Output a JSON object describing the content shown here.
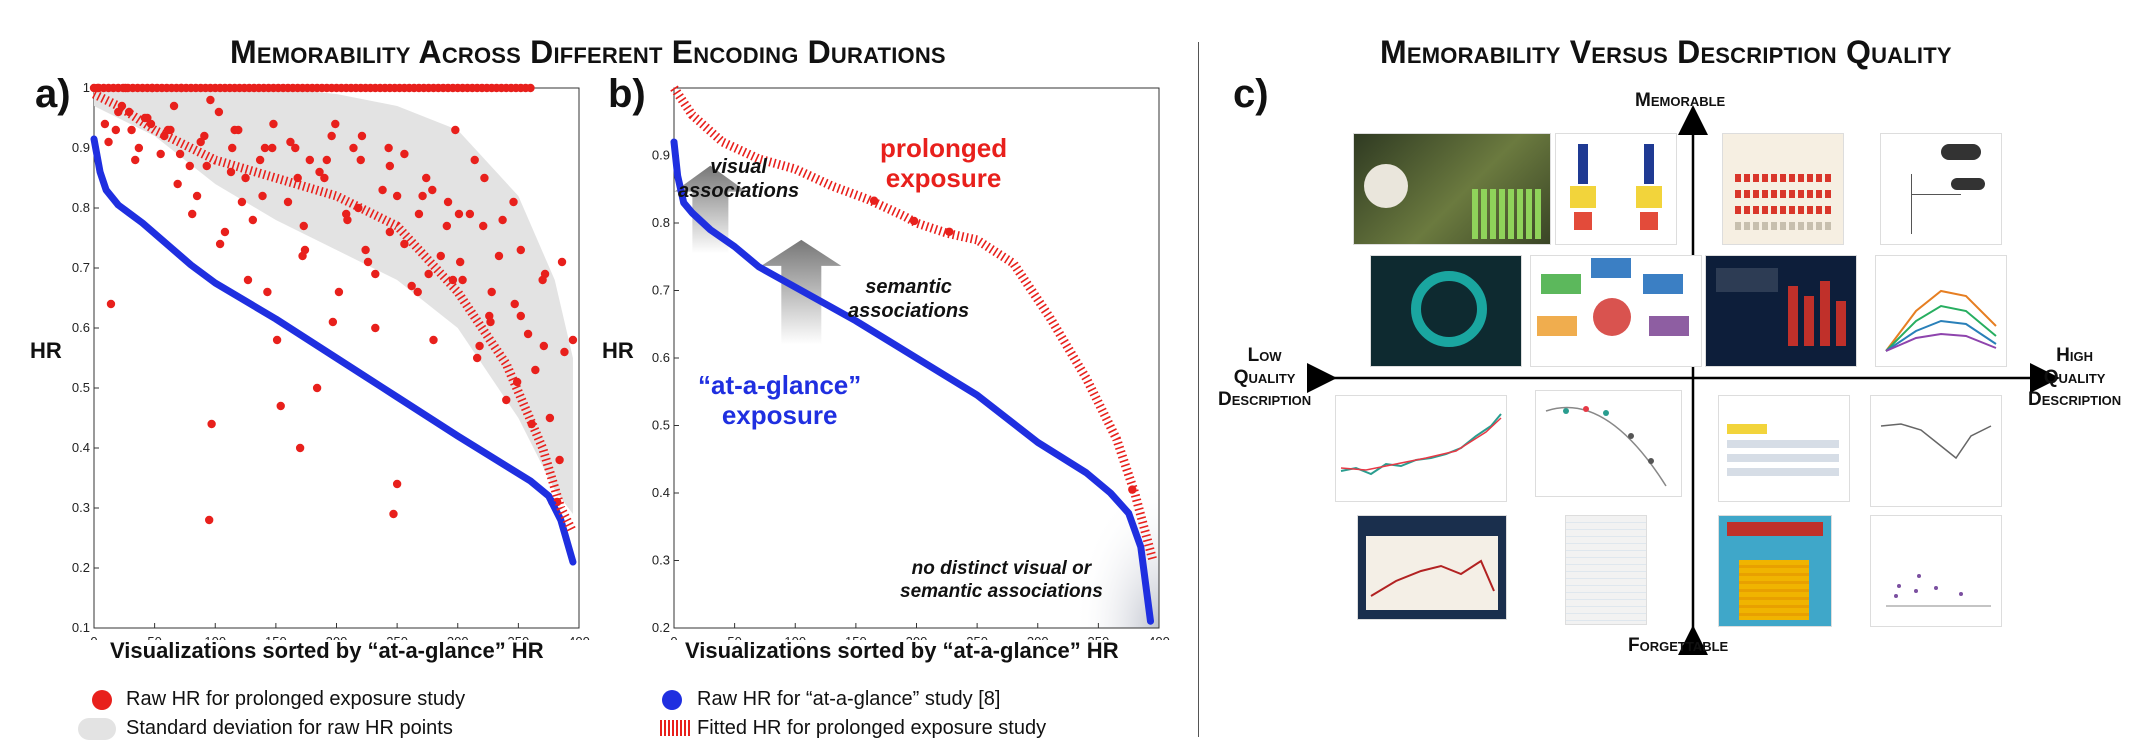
{
  "titles": {
    "left": "Memorability Across Different Encoding Durations",
    "right": "Memorability Versus Description Quality"
  },
  "panels": {
    "a": "a)",
    "b": "b)",
    "c": "c)"
  },
  "colors": {
    "red": "#e8201c",
    "blue": "#1f2fe0",
    "gray_band": "#e3e3e3",
    "arrow_gray": "#888888"
  },
  "chart_data": [
    {
      "type": "scatter",
      "panel": "a",
      "xlabel": "Visualizations sorted by “at-a-glance” HR",
      "ylabel": "HR",
      "xlim": [
        0,
        400
      ],
      "ylim": [
        0.1,
        1.0
      ],
      "xticks": [
        0,
        50,
        100,
        150,
        200,
        250,
        300,
        350,
        400
      ],
      "yticks": [
        0.1,
        0.2,
        0.3,
        0.4,
        0.5,
        0.6,
        0.7,
        0.8,
        0.9,
        1
      ],
      "grid": false,
      "series": [
        {
          "name": "Raw HR for prolonged exposure study",
          "kind": "points",
          "color": "#e8201c",
          "x": [
            3,
            9,
            14,
            20,
            26,
            31,
            37,
            42,
            48,
            55,
            61,
            66,
            72,
            79,
            85,
            91,
            97,
            103,
            108,
            114,
            119,
            125,
            131,
            137,
            143,
            148,
            154,
            160,
            166,
            172,
            178,
            184,
            190,
            196,
            202,
            208,
            214,
            220,
            226,
            232,
            238,
            244,
            250,
            256,
            262,
            268,
            274,
            280,
            286,
            292,
            298,
            304,
            310,
            316,
            322,
            328,
            334,
            340,
            346,
            352,
            358,
            364,
            370,
            376,
            382,
            388,
            12,
            23,
            34,
            47,
            58,
            69,
            81,
            93,
            104,
            116,
            127,
            139,
            151,
            162,
            174,
            186,
            197,
            209,
            221,
            232,
            244,
            256,
            267,
            279,
            291,
            302,
            314,
            326,
            337,
            349,
            361,
            372,
            384,
            18,
            44,
            71,
            96,
            122,
            147,
            173,
            199,
            224,
            250,
            276,
            301,
            327,
            352,
            378,
            29,
            63,
            88,
            113,
            141,
            168,
            192,
            218,
            243,
            271,
            296,
            321,
            347,
            371,
            395,
            95,
            170,
            247,
            318,
            386
          ],
          "y": [
            1,
            0.94,
            0.64,
            0.96,
            1,
            0.93,
            0.9,
            0.95,
            1,
            0.89,
            0.93,
            0.97,
            1,
            0.87,
            0.82,
            0.92,
            0.44,
            0.96,
            0.76,
            0.9,
            0.93,
            0.85,
            0.78,
            0.88,
            0.66,
            0.94,
            0.47,
            0.81,
            0.9,
            0.72,
            0.88,
            0.5,
            0.85,
            0.92,
            0.66,
            0.79,
            0.9,
            0.88,
            0.71,
            0.6,
            0.83,
            0.76,
            0.34,
            0.89,
            0.67,
            0.79,
            0.85,
            0.58,
            0.72,
            0.81,
            0.93,
            0.68,
            0.79,
            0.55,
            0.85,
            0.66,
            0.72,
            0.48,
            0.81,
            0.62,
            0.59,
            0.53,
            0.68,
            0.45,
            0.31,
            0.56,
            0.91,
            0.97,
            0.88,
            0.94,
            0.92,
            0.84,
            0.79,
            0.87,
            0.74,
            0.93,
            0.68,
            0.82,
            0.58,
            0.91,
            0.73,
            0.86,
            0.61,
            0.78,
            0.92,
            0.69,
            0.87,
            0.74,
            0.66,
            0.83,
            0.77,
            0.71,
            0.88,
            0.62,
            0.78,
            0.51,
            0.44,
            0.69,
            0.38,
            0.93,
            0.95,
            0.89,
            0.98,
            0.81,
            0.9,
            0.77,
            0.94,
            0.73,
            0.82,
            0.69,
            0.79,
            0.61,
            0.73,
            0.31,
            0.96,
            0.93,
            0.91,
            0.86,
            0.9,
            0.85,
            0.88,
            0.8,
            0.9,
            0.82,
            0.68,
            0.77,
            0.64,
            0.57,
            0.58,
            0.28,
            0.4,
            0.29,
            0.57,
            0.71
          ],
          "top_row_x": [
            0,
            4,
            8,
            12,
            16,
            20,
            24,
            28,
            32,
            36,
            40,
            44,
            48,
            52,
            56,
            60,
            64,
            68,
            72,
            76,
            80,
            84,
            88,
            92,
            96,
            100,
            104,
            108,
            112,
            116,
            120,
            124,
            128,
            132,
            136,
            140,
            144,
            148,
            152,
            156,
            160,
            164,
            168,
            172,
            176,
            180,
            184,
            188,
            192,
            196,
            200,
            204,
            208,
            212,
            216,
            220,
            224,
            228,
            232,
            236,
            240,
            244,
            248,
            252,
            256,
            260,
            264,
            268,
            272,
            276,
            280,
            284,
            288,
            292,
            296,
            300,
            304,
            308,
            312,
            316,
            320,
            324,
            328,
            332,
            336,
            340,
            344,
            348,
            352,
            356,
            360
          ],
          "top_row_y": 1
        },
        {
          "name": "Standard deviation for raw HR points",
          "kind": "band",
          "color": "#e3e3e3",
          "x": [
            0,
            50,
            100,
            150,
            200,
            250,
            300,
            350,
            380,
            395
          ],
          "upper": [
            1.0,
            1.0,
            1.0,
            1.0,
            0.99,
            0.97,
            0.93,
            0.82,
            0.68,
            0.55
          ],
          "lower": [
            0.97,
            0.92,
            0.84,
            0.78,
            0.73,
            0.68,
            0.6,
            0.45,
            0.33,
            0.29
          ]
        },
        {
          "name": "Raw HR for “at-a-glance” study [8]",
          "kind": "line",
          "color": "#1f2fe0",
          "x": [
            0,
            5,
            10,
            20,
            40,
            60,
            80,
            100,
            150,
            200,
            250,
            300,
            340,
            360,
            375,
            385,
            395
          ],
          "y": [
            0.915,
            0.86,
            0.83,
            0.805,
            0.775,
            0.74,
            0.705,
            0.675,
            0.615,
            0.55,
            0.485,
            0.42,
            0.37,
            0.345,
            0.32,
            0.28,
            0.21
          ]
        },
        {
          "name": "Fitted HR for prolonged exposure study",
          "kind": "hatched",
          "color": "#e8201c",
          "x": [
            0,
            20,
            50,
            100,
            150,
            200,
            250,
            300,
            340,
            370,
            385,
            395
          ],
          "y": [
            0.99,
            0.97,
            0.93,
            0.88,
            0.85,
            0.82,
            0.77,
            0.66,
            0.54,
            0.4,
            0.3,
            0.26
          ]
        }
      ]
    },
    {
      "type": "line",
      "panel": "b",
      "xlabel": "Visualizations sorted by “at-a-glance” HR",
      "ylabel": "HR",
      "xlim": [
        0,
        400
      ],
      "ylim": [
        0.2,
        1.0
      ],
      "xticks": [
        0,
        50,
        100,
        150,
        200,
        250,
        300,
        350,
        400
      ],
      "yticks": [
        0.2,
        0.3,
        0.4,
        0.5,
        0.6,
        0.7,
        0.8,
        0.9
      ],
      "grid": false,
      "series": [
        {
          "name": "Raw HR for “at-a-glance” study [8]",
          "kind": "line",
          "color": "#1f2fe0",
          "x": [
            0,
            3,
            8,
            15,
            30,
            50,
            70,
            100,
            150,
            200,
            250,
            300,
            340,
            360,
            375,
            385,
            393
          ],
          "y": [
            0.92,
            0.87,
            0.83,
            0.815,
            0.79,
            0.765,
            0.735,
            0.705,
            0.655,
            0.6,
            0.545,
            0.475,
            0.43,
            0.4,
            0.37,
            0.32,
            0.21
          ]
        },
        {
          "name": "Fitted HR for prolonged exposure study",
          "kind": "hatched",
          "color": "#e8201c",
          "x": [
            0,
            15,
            40,
            70,
            100,
            130,
            160,
            190,
            200,
            225,
            250,
            280,
            310,
            340,
            365,
            380,
            395
          ],
          "y": [
            1.0,
            0.96,
            0.92,
            0.895,
            0.88,
            0.855,
            0.835,
            0.81,
            0.8,
            0.785,
            0.775,
            0.74,
            0.66,
            0.57,
            0.48,
            0.4,
            0.3
          ]
        },
        {
          "name": "highlighted",
          "kind": "points",
          "color": "#e8201c",
          "x": [
            165,
            198,
            227,
            378
          ],
          "y": [
            0.833,
            0.803,
            0.787,
            0.405
          ]
        }
      ],
      "annotations": {
        "visual": "visual\nassociations",
        "semantic": "semantic\nassociations",
        "prolonged": "prolonged\nexposure",
        "glance": "“at-a-glance”\nexposure",
        "none": "no distinct visual or\nsemantic associations"
      }
    }
  ],
  "legend": {
    "red_dots": "Raw HR for prolonged exposure study",
    "gray_band": "Standard deviation for raw HR points",
    "blue_line": "Raw HR for “at-a-glance” study [8]",
    "red_hatch": "Fitted HR for prolonged exposure study"
  },
  "quadrant": {
    "top": "Memorable",
    "bottom": "Forgettable",
    "left": "Low\nQuality\nDescription",
    "right": "High\nQuality\nDescription"
  }
}
